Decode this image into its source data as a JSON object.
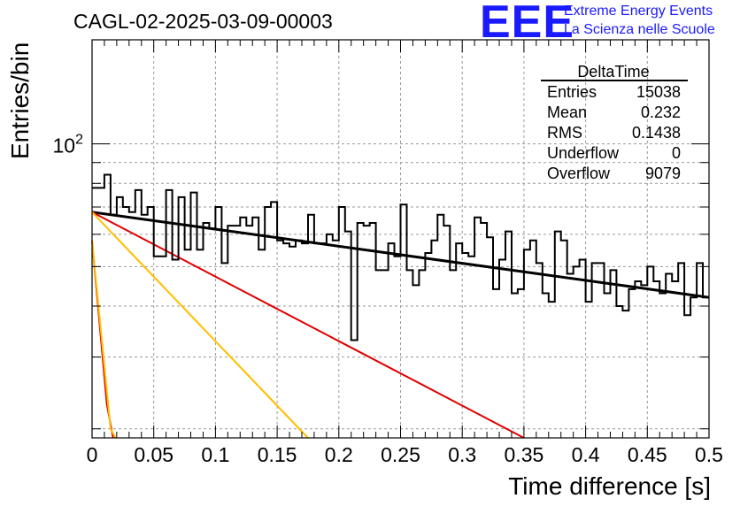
{
  "header": {
    "run_title": "CAGL-02-2025-03-09-00003",
    "logo_text": "EEE",
    "logo_line1": "Extreme Energy Events",
    "logo_line2": "La Scienza nelle Scuole"
  },
  "stats": {
    "title": "DeltaTime",
    "rows": [
      {
        "label": "Entries",
        "value": "15038"
      },
      {
        "label": "Mean",
        "value": "0.232"
      },
      {
        "label": "RMS",
        "value": "0.1438"
      },
      {
        "label": "Underflow",
        "value": "0"
      },
      {
        "label": "Overflow",
        "value": "9079"
      }
    ]
  },
  "chart_data": {
    "type": "line",
    "title": "CAGL-02-2025-03-09-00003",
    "xlabel": "Time difference [s]",
    "ylabel": "Entries/bin",
    "xlim": [
      0,
      0.5
    ],
    "ylim": [
      19,
      180
    ],
    "yscale": "log",
    "grid": true,
    "colors": {
      "histogram": "#000000",
      "fit": "#000000",
      "red": "#e00000",
      "orange": "#ffbf00"
    },
    "x_ticks": [
      "0",
      "0.05",
      "0.1",
      "0.15",
      "0.2",
      "0.25",
      "0.3",
      "0.35",
      "0.4",
      "0.45",
      "0.5"
    ],
    "y_tick_labels": [
      {
        "value": 100,
        "base": "10",
        "exp": "2"
      }
    ],
    "histogram": {
      "bin_width": 0.005,
      "values": [
        78,
        78,
        84,
        67,
        74,
        70,
        68,
        77,
        67,
        70,
        53,
        53,
        77,
        52,
        74,
        55,
        76,
        55,
        64,
        62,
        70,
        51,
        63,
        63,
        66,
        63,
        66,
        55,
        70,
        72,
        58,
        57,
        56,
        58,
        57,
        67,
        57,
        57,
        60,
        58,
        70,
        61,
        33,
        64,
        63,
        64,
        49,
        49,
        57,
        53,
        71,
        49,
        45,
        49,
        54,
        58,
        67,
        63,
        49,
        57,
        54,
        53,
        66,
        64,
        59,
        44,
        52,
        61,
        43,
        44,
        55,
        58,
        51,
        43,
        41,
        61,
        58,
        48,
        50,
        52,
        41,
        51,
        51,
        43,
        49,
        40,
        39,
        44,
        46,
        45,
        50,
        46,
        43,
        48,
        46,
        51,
        38,
        42,
        51,
        42
      ]
    },
    "series": [
      {
        "color": "#000000",
        "x": [
          0,
          0.5
        ],
        "y": [
          68,
          42
        ]
      },
      {
        "color": "#e00000",
        "x": [
          0,
          0.35
        ],
        "y": [
          68,
          19
        ]
      },
      {
        "color": "#ffbf00",
        "x": [
          0,
          0.175
        ],
        "y": [
          68,
          19
        ]
      },
      {
        "color": "#e00000",
        "x": [
          0,
          0.012,
          0.017
        ],
        "y": [
          58,
          23,
          19
        ]
      },
      {
        "color": "#ffbf00",
        "x": [
          0,
          0.015,
          0.019
        ],
        "y": [
          58,
          20,
          19
        ]
      }
    ]
  }
}
